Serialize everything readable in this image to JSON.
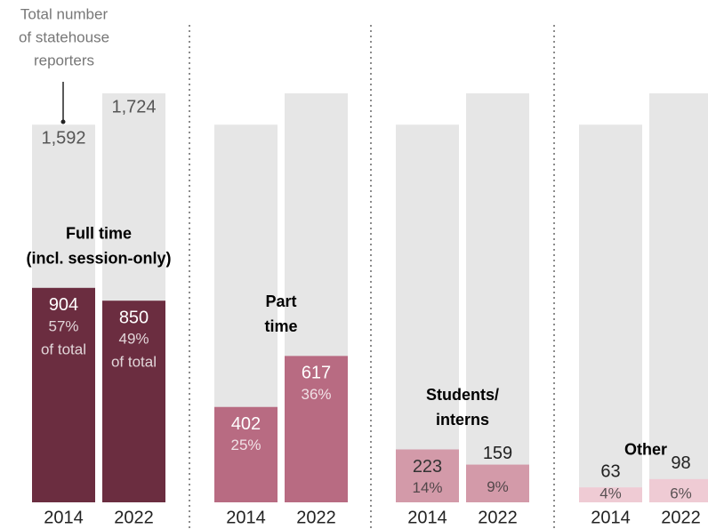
{
  "chart_data": {
    "type": "bar",
    "categories": [
      "2014",
      "2022"
    ],
    "totals": [
      1592,
      1724
    ],
    "total_labels": [
      "1,592",
      "1,724"
    ],
    "total_color": "#e6e6e6",
    "annotation": [
      "Total number",
      "of statehouse",
      "reporters"
    ],
    "panels": [
      {
        "title": [
          "Full time",
          "(incl. session-only)"
        ],
        "color": "#6b2d40",
        "label_color": "#ffffff",
        "values": [
          904,
          850
        ],
        "shares": [
          57,
          49
        ],
        "share_labels": [
          "57%",
          "49%"
        ],
        "share_note": "of total"
      },
      {
        "title": [
          "Part",
          "time"
        ],
        "color": "#b86b82",
        "label_color": "#ffffff",
        "values": [
          402,
          617
        ],
        "shares": [
          25,
          36
        ],
        "share_labels": [
          "25%",
          "36%"
        ]
      },
      {
        "title": [
          "Students/",
          "interns"
        ],
        "color": "#d39aa9",
        "label_color": "#333333",
        "values": [
          223,
          159
        ],
        "shares": [
          14,
          9
        ],
        "share_labels": [
          "14%",
          "9%"
        ]
      },
      {
        "title": [
          "Other"
        ],
        "color": "#efcbd4",
        "label_color": "#333333",
        "values": [
          63,
          98
        ],
        "shares": [
          4,
          6
        ],
        "share_labels": [
          "4%",
          "6%"
        ]
      }
    ]
  }
}
